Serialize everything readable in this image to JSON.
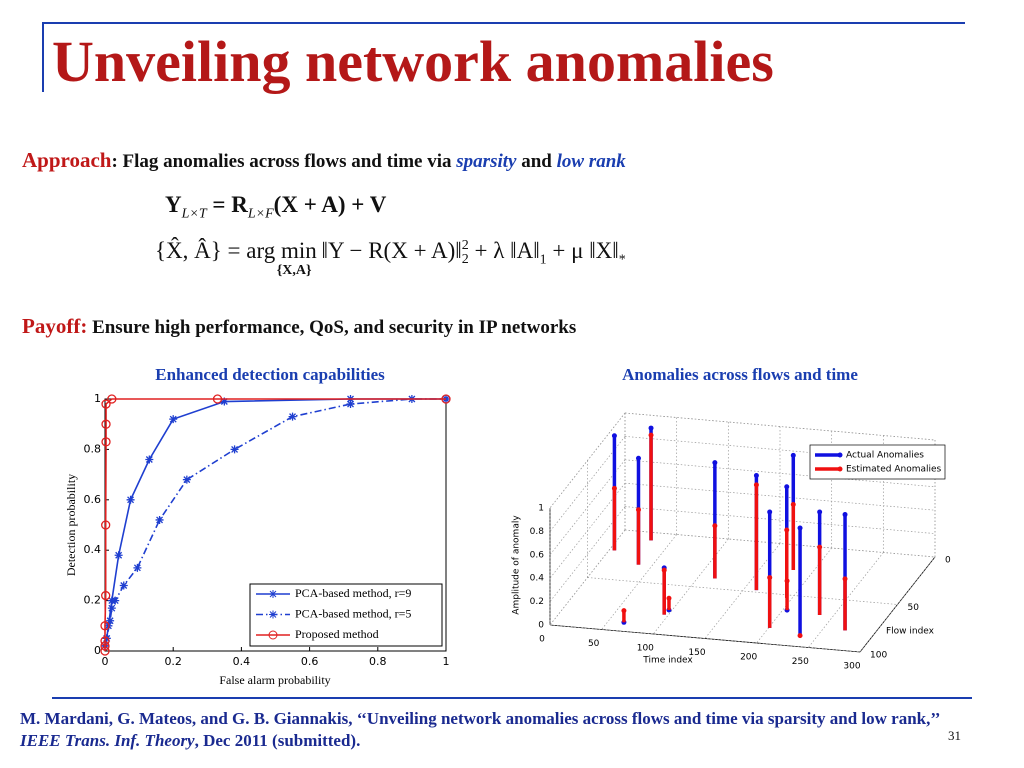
{
  "title": "Unveiling network anomalies",
  "approach": {
    "label": "Approach",
    "text": ": Flag anomalies across flows and time via",
    "sparsity": "sparsity",
    "and": "and",
    "low_rank": "low rank"
  },
  "equations": {
    "eq1": {
      "y": "Y",
      "y_sub": "L×T",
      "r": "= R",
      "r_sub": "L×F",
      "rest": "(X + A) + V"
    },
    "eq2": {
      "lhs": "{X̂, Â} = arg min",
      "min_sub": "{X,A}",
      "norm1": "‖Y − R(X + A)‖",
      "norm1_sup": "2",
      "norm1_sub": "2",
      "term2": "+ λ ‖A‖",
      "term2_sub": "1",
      "term3": "+ μ ‖X‖",
      "term3_sub": "*"
    }
  },
  "payoff": {
    "label": "Payoff:",
    "text": "Ensure high performance, QoS, and security in IP networks"
  },
  "chart_data": [
    {
      "type": "line",
      "title": "Enhanced detection capabilities",
      "x_label": "False alarm probability",
      "y_label": "Detection probability",
      "xlim": [
        0,
        1
      ],
      "ylim": [
        0,
        1
      ],
      "xticks": [
        0,
        0.2,
        0.4,
        0.6,
        0.8,
        1
      ],
      "yticks": [
        0,
        0.2,
        0.4,
        0.6,
        0.8,
        1
      ],
      "grid": false,
      "legend": "lower right",
      "series": [
        {
          "name": "PCA-based method, r=9",
          "color": "#1f3fd0",
          "linestyle": "solid",
          "marker": "star",
          "x": [
            0,
            0.005,
            0.01,
            0.02,
            0.04,
            0.075,
            0.13,
            0.2,
            0.35,
            0.72,
            1
          ],
          "values": [
            0.02,
            0.05,
            0.1,
            0.2,
            0.38,
            0.6,
            0.76,
            0.92,
            0.99,
            1,
            1
          ]
        },
        {
          "name": "PCA-based method, r=5",
          "color": "#1f3fd0",
          "linestyle": "dashdot",
          "marker": "star",
          "x": [
            0,
            0.005,
            0.015,
            0.02,
            0.03,
            0.055,
            0.095,
            0.16,
            0.24,
            0.38,
            0.55,
            0.72,
            0.9,
            1
          ],
          "values": [
            0.02,
            0.05,
            0.12,
            0.17,
            0.2,
            0.26,
            0.33,
            0.52,
            0.68,
            0.8,
            0.93,
            0.98,
            1,
            1
          ]
        },
        {
          "name": "Proposed method",
          "color": "#e02020",
          "linestyle": "solid",
          "marker": "circle",
          "x": [
            0,
            0,
            0,
            0,
            0.002,
            0.002,
            0.003,
            0.003,
            0.003,
            0.02,
            0.33,
            1
          ],
          "values": [
            0,
            0.02,
            0.04,
            0.1,
            0.22,
            0.5,
            0.83,
            0.9,
            0.98,
            1,
            1,
            1
          ]
        }
      ]
    },
    {
      "type": "stem3d",
      "title": "Anomalies across flows and time",
      "x_label": "Time index",
      "y_label": "Flow index",
      "z_label": "Amplitude of anomaly",
      "xlim": [
        0,
        300
      ],
      "ylim": [
        0,
        100
      ],
      "zlim": [
        0,
        1
      ],
      "xticks": [
        0,
        50,
        100,
        150,
        200,
        250,
        300
      ],
      "yticks": [
        0,
        50,
        100
      ],
      "zticks": [
        0,
        0.2,
        0.4,
        0.6,
        0.8,
        1
      ],
      "grid": true,
      "legend": "upper right",
      "time": [
        5,
        37,
        31,
        96,
        65,
        97,
        116,
        162,
        201,
        195,
        204,
        181,
        234,
        237,
        271
      ],
      "flow": [
        21,
        33,
        8,
        80,
        91,
        75,
        40,
        48,
        84,
        53,
        65,
        25,
        89,
        67,
        80
      ],
      "series": [
        {
          "name": "Actual Anomalies",
          "color": "#1010e0",
          "values": [
            0.98,
            0.91,
            0.96,
            0.4,
            0,
            0,
            0.99,
            0.98,
            0.99,
            0.95,
            0,
            0.98,
            0.92,
            0.88,
            0.99
          ]
        },
        {
          "name": "Estimated Anomalies",
          "color": "#f01010",
          "values": [
            0.53,
            0.47,
            0.9,
            0.38,
            0.1,
            0.1,
            0.45,
            0.9,
            0.43,
            0.58,
            0.25,
            0.56,
            0,
            0.58,
            0.44
          ]
        }
      ]
    }
  ],
  "citation": {
    "text": "M. Mardani, G. Mateos, and G. B. Giannakis, ‘‘Unveiling network anomalies across flows and time via sparsity and low rank,’’",
    "journal": "IEEE Trans. Inf. Theory",
    "rest": ", Dec 2011 (submitted)."
  },
  "page_number": 31
}
